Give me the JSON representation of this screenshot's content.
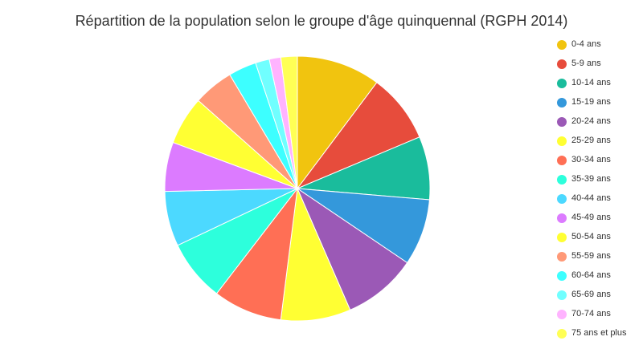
{
  "chart_data": {
    "type": "pie",
    "title": "Répartition de la population selon le groupe d'âge quinquennal (RGPH 2014)",
    "unit": "percent (estimated from slice angles)",
    "legend_position": "right",
    "categories": [
      "0-4 ans",
      "5-9 ans",
      "10-14 ans",
      "15-19 ans",
      "20-24 ans",
      "25-29 ans",
      "30-34 ans",
      "35-39 ans",
      "40-44 ans",
      "45-49 ans",
      "50-54 ans",
      "55-59 ans",
      "60-64 ans",
      "65-69 ans",
      "70-74 ans",
      "75 ans et plus"
    ],
    "values": [
      10.2,
      8.4,
      7.7,
      8.1,
      9.0,
      8.5,
      8.4,
      7.5,
      6.7,
      6.0,
      5.9,
      4.9,
      3.4,
      1.7,
      1.4,
      2.0
    ],
    "colors": [
      "#f1c40f",
      "#e74c3c",
      "#1abc9c",
      "#3498db",
      "#9b59b6",
      "#ffff33",
      "#ff6f55",
      "#2dffdc",
      "#4cd9ff",
      "#dc7bff",
      "#ffff33",
      "#ff9977",
      "#3dffff",
      "#70ffff",
      "#ffb3ff",
      "#ffff55"
    ]
  }
}
